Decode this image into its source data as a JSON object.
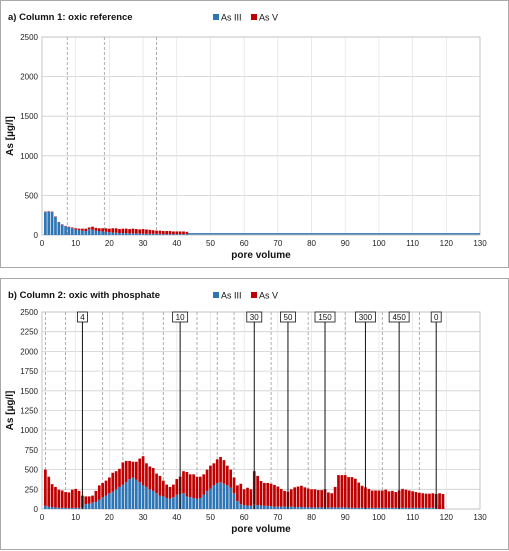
{
  "chart_data": [
    {
      "type": "bar",
      "title": "a) Column 1: oxic reference",
      "xlabel": "pore volume",
      "ylabel": "As [µg/l]",
      "xlim": [
        0,
        130
      ],
      "ylim": [
        0,
        2500
      ],
      "xticks": [
        0,
        10,
        20,
        30,
        40,
        50,
        60,
        70,
        80,
        90,
        100,
        110,
        120,
        130
      ],
      "yticks": [
        0,
        500,
        1000,
        1500,
        2000,
        2500
      ],
      "legend": [
        "As III",
        "As V"
      ],
      "legend_position": "top-center",
      "colors": {
        "As III": "#2e75b6",
        "As V": "#c00000"
      },
      "dashed_lines_x": [
        7.5,
        18.5,
        34
      ],
      "x": [
        1,
        2,
        3,
        4,
        5,
        6,
        7,
        8,
        9,
        10,
        11,
        12,
        13,
        14,
        15,
        16,
        17,
        18,
        19,
        20,
        21,
        22,
        23,
        24,
        25,
        26,
        27,
        28,
        29,
        30,
        31,
        32,
        33,
        34,
        35,
        36,
        37,
        38,
        39,
        40,
        41,
        42,
        43
      ],
      "series": [
        {
          "name": "As III",
          "values": [
            290,
            295,
            290,
            230,
            160,
            130,
            110,
            100,
            85,
            70,
            60,
            55,
            50,
            75,
            65,
            55,
            50,
            45,
            40,
            35,
            30,
            30,
            25,
            25,
            25,
            20,
            20,
            20,
            20,
            15,
            15,
            15,
            15,
            15,
            15,
            10,
            10,
            10,
            10,
            10,
            10,
            10,
            10
          ]
        },
        {
          "name": "As V",
          "values": [
            5,
            5,
            5,
            5,
            5,
            5,
            5,
            5,
            10,
            15,
            20,
            25,
            30,
            20,
            40,
            35,
            35,
            40,
            45,
            45,
            55,
            55,
            50,
            55,
            55,
            55,
            60,
            55,
            50,
            60,
            55,
            50,
            45,
            40,
            40,
            40,
            40,
            40,
            35,
            35,
            35,
            35,
            30
          ]
        }
      ],
      "baseline": {
        "value": 15,
        "x_range": [
          43,
          130
        ]
      }
    },
    {
      "type": "bar",
      "title": "b) Column 2: oxic with phosphate",
      "xlabel": "pore volume",
      "ylabel": "As [µg/l]",
      "xlim": [
        0,
        130
      ],
      "ylim": [
        0,
        2500
      ],
      "xticks": [
        0,
        10,
        20,
        30,
        40,
        50,
        60,
        70,
        80,
        90,
        100,
        110,
        120,
        130
      ],
      "yticks": [
        0,
        250,
        500,
        750,
        1000,
        1250,
        1500,
        1750,
        2000,
        2250,
        2500
      ],
      "legend": [
        "As III",
        "As V"
      ],
      "legend_position": "top-center",
      "colors": {
        "As III": "#2e75b6",
        "As V": "#c00000"
      },
      "dashed_lines_x": [
        1,
        7,
        18,
        24,
        30,
        36,
        46,
        52,
        57,
        68,
        79,
        90,
        101,
        112
      ],
      "annotations": [
        {
          "x": 12,
          "label": "4"
        },
        {
          "x": 41,
          "label": "10"
        },
        {
          "x": 63,
          "label": "30"
        },
        {
          "x": 73,
          "label": "50"
        },
        {
          "x": 84,
          "label": "150"
        },
        {
          "x": 96,
          "label": "300"
        },
        {
          "x": 106,
          "label": "450"
        },
        {
          "x": 117,
          "label": "0"
        }
      ],
      "x": [
        1,
        2,
        3,
        4,
        5,
        6,
        7,
        8,
        9,
        10,
        11,
        12,
        13,
        14,
        15,
        16,
        17,
        18,
        19,
        20,
        21,
        22,
        23,
        24,
        25,
        26,
        27,
        28,
        29,
        30,
        31,
        32,
        33,
        34,
        35,
        36,
        37,
        38,
        39,
        40,
        41,
        42,
        43,
        44,
        45,
        46,
        47,
        48,
        49,
        50,
        51,
        52,
        53,
        54,
        55,
        56,
        57,
        58,
        59,
        60,
        61,
        62,
        63,
        64,
        65,
        66,
        67,
        68,
        69,
        70,
        71,
        72,
        73,
        74,
        75,
        76,
        77,
        78,
        79,
        80,
        81,
        82,
        83,
        84,
        85,
        86,
        87,
        88,
        89,
        90,
        91,
        92,
        93,
        94,
        95,
        96,
        97,
        98,
        99,
        100,
        101,
        102,
        103,
        104,
        105,
        106,
        107,
        108,
        109,
        110,
        111,
        112,
        113,
        114,
        115,
        116,
        117,
        118,
        119
      ],
      "series": [
        {
          "name": "As III",
          "values": [
            40,
            30,
            25,
            20,
            15,
            15,
            15,
            10,
            15,
            15,
            15,
            20,
            60,
            70,
            80,
            90,
            120,
            150,
            170,
            200,
            220,
            250,
            280,
            310,
            340,
            380,
            400,
            370,
            340,
            300,
            280,
            250,
            230,
            200,
            170,
            160,
            140,
            130,
            150,
            180,
            190,
            200,
            160,
            150,
            140,
            130,
            140,
            180,
            230,
            260,
            300,
            330,
            340,
            320,
            300,
            270,
            200,
            100,
            60,
            50,
            45,
            40,
            60,
            50,
            45,
            40,
            40,
            35,
            30,
            30,
            30,
            30,
            30,
            30,
            25,
            25,
            25,
            25,
            20,
            20,
            20,
            20,
            20,
            20,
            20,
            20,
            20,
            20,
            20,
            20,
            15,
            15,
            15,
            15,
            15,
            15,
            15,
            15,
            15,
            15,
            15,
            15,
            15,
            15,
            15,
            15,
            15,
            15,
            15,
            15,
            15,
            15,
            15,
            15,
            15,
            15,
            10,
            10,
            10
          ]
        },
        {
          "name": "As V",
          "values": [
            460,
            380,
            290,
            260,
            230,
            220,
            200,
            200,
            230,
            240,
            215,
            150,
            100,
            90,
            90,
            140,
            180,
            180,
            190,
            200,
            240,
            230,
            230,
            280,
            270,
            230,
            200,
            230,
            300,
            370,
            300,
            290,
            290,
            250,
            250,
            200,
            170,
            150,
            160,
            200,
            220,
            280,
            310,
            290,
            300,
            280,
            270,
            260,
            270,
            290,
            280,
            300,
            320,
            300,
            250,
            230,
            200,
            200,
            260,
            200,
            225,
            210,
            420,
            370,
            310,
            290,
            290,
            285,
            275,
            255,
            225,
            200,
            190,
            220,
            250,
            260,
            270,
            250,
            240,
            230,
            230,
            220,
            220,
            230,
            190,
            180,
            260,
            410,
            410,
            410,
            390,
            390,
            370,
            320,
            280,
            260,
            240,
            220,
            220,
            220,
            220,
            230,
            210,
            215,
            200,
            220,
            240,
            230,
            220,
            210,
            200,
            190,
            185,
            180,
            180,
            185,
            180,
            190,
            180
          ]
        }
      ],
      "trailing_points": [
        {
          "x": 118,
          "value": 50
        },
        {
          "x": 119,
          "value": 30
        }
      ]
    }
  ]
}
